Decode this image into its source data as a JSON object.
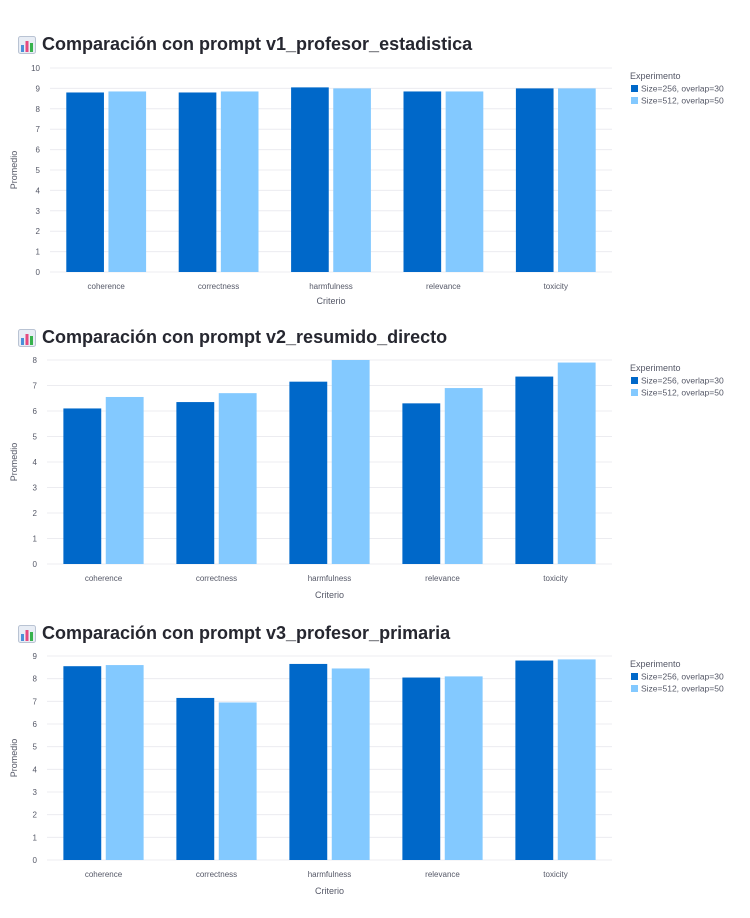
{
  "legend_title": "Experimento",
  "series_names": [
    "Size=256, overlap=30",
    "Size=512, overlap=50"
  ],
  "colors": {
    "series_1": "#0068c9",
    "series_2": "#83c9ff",
    "grid": "#ececf0"
  },
  "title_icon": "bar-chart-icon",
  "charts": [
    {
      "title": "Comparación con prompt v1_profesor_estadistica"
    },
    {
      "title": "Comparación con prompt v2_resumido_directo"
    },
    {
      "title": "Comparación con prompt v3_profesor_primaria"
    }
  ],
  "chart_data": [
    {
      "type": "bar",
      "title": "Comparación con prompt v1_profesor_estadistica",
      "xlabel": "Criterio",
      "ylabel": "Promedio",
      "categories": [
        "coherence",
        "correctness",
        "harmfulness",
        "relevance",
        "toxicity"
      ],
      "ylim": [
        0,
        10
      ],
      "yticks": [
        0,
        1,
        2,
        3,
        4,
        5,
        6,
        7,
        8,
        9,
        10
      ],
      "grid": true,
      "legend": "top-right",
      "series": [
        {
          "name": "Size=256, overlap=30",
          "values": [
            8.8,
            8.8,
            9.05,
            8.85,
            9.0
          ]
        },
        {
          "name": "Size=512, overlap=50",
          "values": [
            8.85,
            8.85,
            9.0,
            8.85,
            9.0
          ]
        }
      ]
    },
    {
      "type": "bar",
      "title": "Comparación con prompt v2_resumido_directo",
      "xlabel": "Criterio",
      "ylabel": "Promedio",
      "categories": [
        "coherence",
        "correctness",
        "harmfulness",
        "relevance",
        "toxicity"
      ],
      "ylim": [
        0,
        8
      ],
      "yticks": [
        0,
        1,
        2,
        3,
        4,
        5,
        6,
        7,
        8
      ],
      "grid": true,
      "legend": "top-right",
      "series": [
        {
          "name": "Size=256, overlap=30",
          "values": [
            6.1,
            6.35,
            7.15,
            6.3,
            7.35
          ]
        },
        {
          "name": "Size=512, overlap=50",
          "values": [
            6.55,
            6.7,
            8.0,
            6.9,
            7.9
          ]
        }
      ]
    },
    {
      "type": "bar",
      "title": "Comparación con prompt v3_profesor_primaria",
      "xlabel": "Criterio",
      "ylabel": "Promedio",
      "categories": [
        "coherence",
        "correctness",
        "harmfulness",
        "relevance",
        "toxicity"
      ],
      "ylim": [
        0,
        9
      ],
      "yticks": [
        0,
        1,
        2,
        3,
        4,
        5,
        6,
        7,
        8,
        9
      ],
      "grid": true,
      "legend": "top-right",
      "series": [
        {
          "name": "Size=256, overlap=30",
          "values": [
            8.55,
            7.15,
            8.65,
            8.05,
            8.8
          ]
        },
        {
          "name": "Size=512, overlap=50",
          "values": [
            8.6,
            6.95,
            8.45,
            8.1,
            8.85
          ]
        }
      ]
    }
  ]
}
